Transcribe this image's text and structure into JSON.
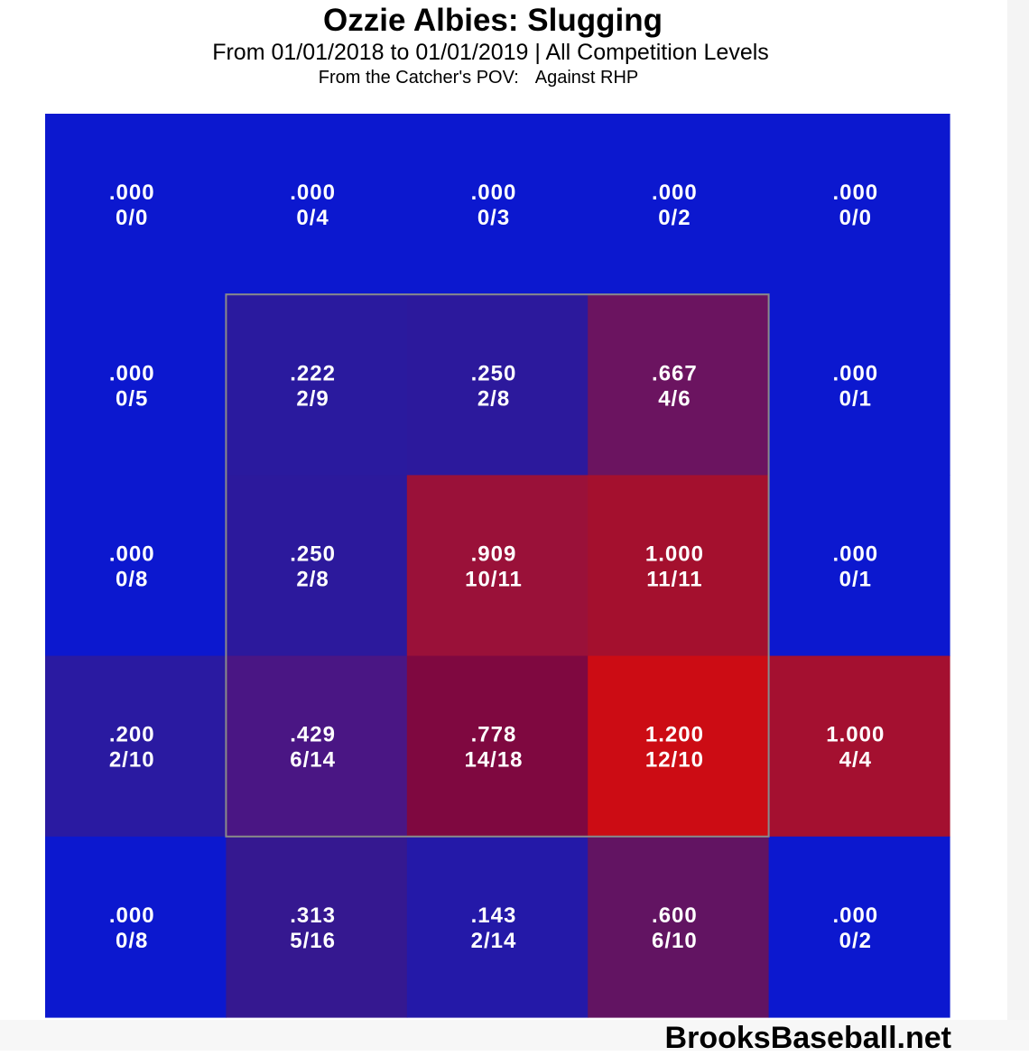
{
  "title": "Ozzie Albies: Slugging",
  "subtitle": "From 01/01/2018 to 01/01/2019 | All Competition Levels",
  "pov": "From the Catcher's POV:",
  "split": "Against RHP",
  "credit": "BrooksBaseball.net",
  "chart_data": {
    "type": "heatmap",
    "metric": "Slugging",
    "orientation": "Catcher's POV",
    "rows": 5,
    "cols": 5,
    "strike_zone": {
      "rows": [
        1,
        3
      ],
      "cols": [
        1,
        3
      ]
    },
    "cells": [
      [
        {
          "value": ".000",
          "ratio": "0/0",
          "color": "#0c18cf"
        },
        {
          "value": ".000",
          "ratio": "0/4",
          "color": "#0c18cf"
        },
        {
          "value": ".000",
          "ratio": "0/3",
          "color": "#0c18cf"
        },
        {
          "value": ".000",
          "ratio": "0/2",
          "color": "#0c18cf"
        },
        {
          "value": ".000",
          "ratio": "0/0",
          "color": "#0c18cf"
        }
      ],
      [
        {
          "value": ".000",
          "ratio": "0/5",
          "color": "#0c18cf"
        },
        {
          "value": ".222",
          "ratio": "2/9",
          "color": "#2a1a9e"
        },
        {
          "value": ".250",
          "ratio": "2/8",
          "color": "#2c199c"
        },
        {
          "value": ".667",
          "ratio": "4/6",
          "color": "#6b1460"
        },
        {
          "value": ".000",
          "ratio": "0/1",
          "color": "#0c18cf"
        }
      ],
      [
        {
          "value": ".000",
          "ratio": "0/8",
          "color": "#0c18cf"
        },
        {
          "value": ".250",
          "ratio": "2/8",
          "color": "#2c199c"
        },
        {
          "value": ".909",
          "ratio": "10/11",
          "color": "#9a1139"
        },
        {
          "value": "1.000",
          "ratio": "11/11",
          "color": "#a4102e"
        },
        {
          "value": ".000",
          "ratio": "0/1",
          "color": "#0c18cf"
        }
      ],
      [
        {
          "value": ".200",
          "ratio": "2/10",
          "color": "#2a1aa1"
        },
        {
          "value": ".429",
          "ratio": "6/14",
          "color": "#4a1684"
        },
        {
          "value": ".778",
          "ratio": "14/18",
          "color": "#7f0840"
        },
        {
          "value": "1.200",
          "ratio": "12/10",
          "color": "#cc0c14"
        },
        {
          "value": "1.000",
          "ratio": "4/4",
          "color": "#a41030"
        }
      ],
      [
        {
          "value": ".000",
          "ratio": "0/8",
          "color": "#0c18cf"
        },
        {
          "value": ".313",
          "ratio": "5/16",
          "color": "#351890"
        },
        {
          "value": ".143",
          "ratio": "2/14",
          "color": "#2419a8"
        },
        {
          "value": ".600",
          "ratio": "6/10",
          "color": "#621462"
        },
        {
          "value": ".000",
          "ratio": "0/2",
          "color": "#0c18cf"
        }
      ]
    ]
  }
}
